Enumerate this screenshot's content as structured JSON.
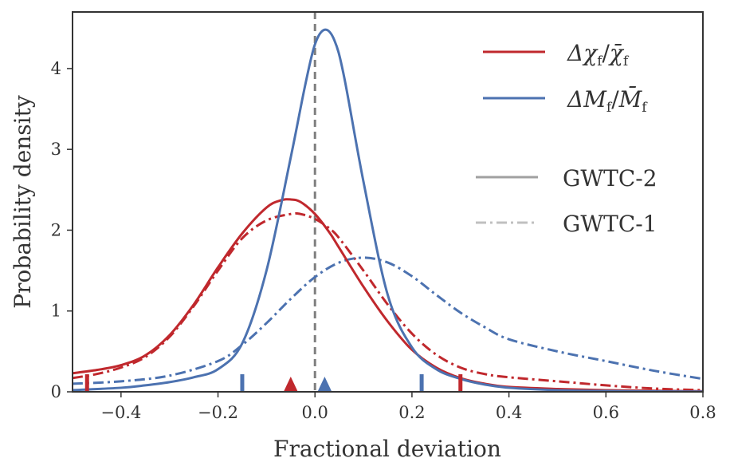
{
  "chart_data": {
    "type": "line",
    "title": "",
    "xlabel": "Fractional deviation",
    "ylabel": "Probability density",
    "xlim": [
      -0.5,
      0.8
    ],
    "ylim": [
      0,
      4.7
    ],
    "xticks": [
      -0.4,
      -0.2,
      0.0,
      0.2,
      0.4,
      0.6,
      0.8
    ],
    "xtick_labels": [
      "−0.4",
      "−0.2",
      "0.0",
      "0.2",
      "0.4",
      "0.6",
      "0.8"
    ],
    "yticks": [
      0,
      1,
      2,
      3,
      4
    ],
    "ytick_labels": [
      "0",
      "1",
      "2",
      "3",
      "4"
    ],
    "grid": false,
    "legend_position": "top-right",
    "reference_line": {
      "x": 0.0,
      "style": "dashed",
      "color": "#7f7f7f"
    },
    "series": [
      {
        "name": "Δχ_f/χ̄_f",
        "legend_label": "Δχf/χ̄f",
        "catalog": "GWTC-2",
        "color": "#c0282d",
        "style": "solid",
        "x": [
          -0.5,
          -0.45,
          -0.4,
          -0.35,
          -0.3,
          -0.25,
          -0.2,
          -0.15,
          -0.1,
          -0.07,
          -0.05,
          -0.03,
          0.0,
          0.03,
          0.05,
          0.1,
          0.15,
          0.2,
          0.25,
          0.3,
          0.35,
          0.4,
          0.5,
          0.6,
          0.7,
          0.8
        ],
        "y": [
          0.23,
          0.27,
          0.33,
          0.45,
          0.7,
          1.08,
          1.54,
          1.96,
          2.28,
          2.37,
          2.38,
          2.35,
          2.2,
          1.97,
          1.78,
          1.3,
          0.87,
          0.52,
          0.3,
          0.17,
          0.1,
          0.06,
          0.035,
          0.02,
          0.012,
          0.008
        ]
      },
      {
        "name": "Δχ_f/χ̄_f",
        "catalog": "GWTC-1",
        "color": "#c0282d",
        "style": "dashdot",
        "x": [
          -0.5,
          -0.45,
          -0.4,
          -0.35,
          -0.3,
          -0.25,
          -0.2,
          -0.15,
          -0.1,
          -0.05,
          -0.03,
          0.0,
          0.03,
          0.05,
          0.1,
          0.15,
          0.2,
          0.25,
          0.3,
          0.35,
          0.4,
          0.5,
          0.6,
          0.7,
          0.8
        ],
        "y": [
          0.17,
          0.22,
          0.3,
          0.43,
          0.68,
          1.06,
          1.5,
          1.9,
          2.12,
          2.2,
          2.2,
          2.14,
          2.02,
          1.9,
          1.5,
          1.08,
          0.72,
          0.46,
          0.3,
          0.22,
          0.18,
          0.13,
          0.08,
          0.04,
          0.02
        ]
      },
      {
        "name": "ΔM_f/M̄_f",
        "legend_label": "ΔMf/M̄f",
        "catalog": "GWTC-2",
        "color": "#4c72b0",
        "style": "solid",
        "x": [
          -0.5,
          -0.4,
          -0.35,
          -0.3,
          -0.25,
          -0.2,
          -0.15,
          -0.1,
          -0.05,
          -0.02,
          0.0,
          0.02,
          0.04,
          0.06,
          0.1,
          0.15,
          0.2,
          0.25,
          0.3,
          0.35,
          0.4,
          0.5,
          0.6,
          0.7,
          0.8
        ],
        "y": [
          0.02,
          0.05,
          0.08,
          0.12,
          0.18,
          0.28,
          0.6,
          1.5,
          2.9,
          3.8,
          4.3,
          4.48,
          4.35,
          3.9,
          2.6,
          1.2,
          0.55,
          0.28,
          0.16,
          0.09,
          0.05,
          0.02,
          0.01,
          0.005,
          0.003
        ]
      },
      {
        "name": "ΔM_f/M̄_f",
        "catalog": "GWTC-1",
        "color": "#4c72b0",
        "style": "dashdot",
        "x": [
          -0.5,
          -0.4,
          -0.3,
          -0.2,
          -0.15,
          -0.1,
          -0.05,
          0.0,
          0.05,
          0.1,
          0.15,
          0.2,
          0.25,
          0.3,
          0.35,
          0.4,
          0.5,
          0.6,
          0.7,
          0.8
        ],
        "y": [
          0.1,
          0.13,
          0.2,
          0.38,
          0.58,
          0.85,
          1.15,
          1.42,
          1.6,
          1.66,
          1.6,
          1.43,
          1.2,
          0.98,
          0.8,
          0.65,
          0.5,
          0.38,
          0.26,
          0.16
        ]
      }
    ],
    "median_markers": [
      {
        "x": -0.05,
        "color": "#c0282d",
        "shape": "triangle"
      },
      {
        "x": 0.02,
        "color": "#4c72b0",
        "shape": "triangle"
      }
    ],
    "interval_markers": [
      {
        "x": -0.47,
        "color": "#c0282d",
        "shape": "tick"
      },
      {
        "x": 0.3,
        "color": "#c0282d",
        "shape": "tick"
      },
      {
        "x": -0.15,
        "color": "#4c72b0",
        "shape": "tick"
      },
      {
        "x": 0.22,
        "color": "#4c72b0",
        "shape": "tick"
      }
    ],
    "legend": {
      "entries": [
        {
          "label_main": "Δχ",
          "label_sub": "f",
          "label_sep": "/",
          "label_bar": "χ̄",
          "label_bar_sub": "f",
          "color": "#c0282d",
          "style": "solid"
        },
        {
          "label_main": "ΔM",
          "label_sub": "f",
          "label_sep": "/",
          "label_bar": "M̄",
          "label_bar_sub": "f",
          "color": "#4c72b0",
          "style": "solid"
        }
      ],
      "styles": [
        {
          "label": "GWTC-2",
          "color": "#a0a0a0",
          "style": "solid"
        },
        {
          "label": "GWTC-1",
          "color": "#c0c0c0",
          "style": "dashdot"
        }
      ]
    }
  }
}
